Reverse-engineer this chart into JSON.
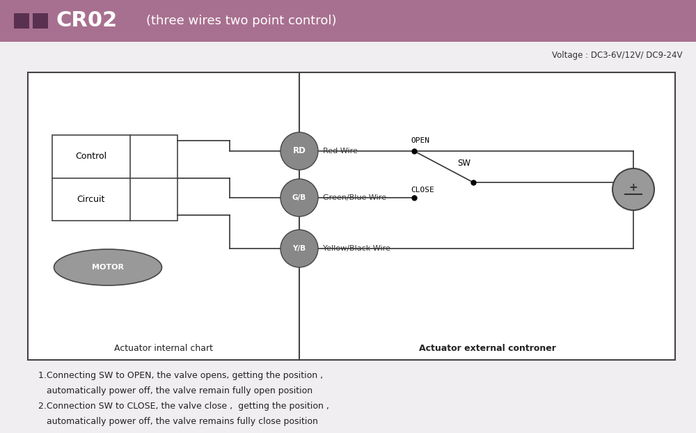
{
  "title_text": "CR02",
  "title_subtitle": "(three wires two point control)",
  "title_bg_color": "#a87090",
  "title_square_color": "#5a3050",
  "voltage_text": "Voltage : DC3-6V/12V/ DC9-24V",
  "diagram_border": "#444444",
  "circle_color": "#888888",
  "motor_color": "#999999",
  "wire_color": "#333333",
  "open_text": "OPEN",
  "close_text": "CLOSE",
  "sw_text": "SW",
  "rd_label": "RD",
  "gb_label": "G/B",
  "yb_label": "Y/B",
  "red_wire_text": "Red Wire",
  "green_blue_wire_text": "Green/Blue Wire",
  "yellow_black_wire_text": "Yellow/Black Wire",
  "internal_label": "Actuator internal chart",
  "external_label": "Actuator external controner",
  "note1_line1": "1.Connecting SW to OPEN, the valve opens, getting the position ,",
  "note1_line2": "   automatically power off, the valve remain fully open position",
  "note2_line1": "2.Connection SW to CLOSE, the valve close ,  getting the position ,",
  "note2_line2": "   automatically power off, the valve remains fully close position",
  "bg_color": "#f0eef0"
}
